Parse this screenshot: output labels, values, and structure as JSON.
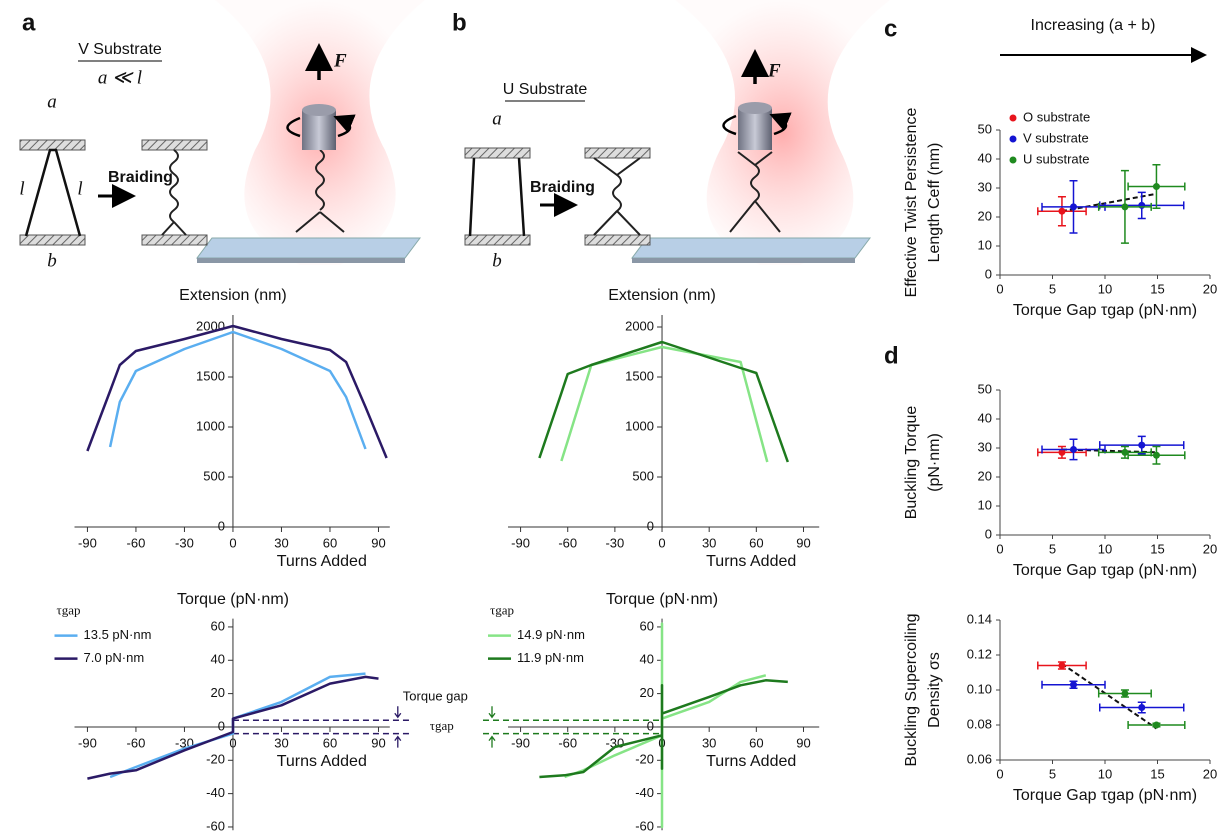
{
  "panel_labels": [
    "a",
    "b",
    "c",
    "d"
  ],
  "diagrams": {
    "a": {
      "title": "V Substrate",
      "condition": "a ≪ l",
      "a": "a",
      "l": "l",
      "b": "b",
      "action": "Braiding",
      "force": "F"
    },
    "b": {
      "title": "U Substrate",
      "a": "a",
      "b": "b",
      "action": "Braiding",
      "force": "F"
    },
    "c_header": "Increasing (a + b)"
  },
  "chart_data": [
    {
      "type": "line",
      "title": "Extension (nm)",
      "x_label": "Turns Added",
      "x": [
        -90,
        -76,
        -70,
        -60,
        -30,
        0,
        30,
        60,
        70,
        82,
        95
      ],
      "series": [
        {
          "color": "#5aaef0",
          "values": [
            null,
            800,
            1250,
            1560,
            1780,
            1950,
            1780,
            1560,
            1300,
            780,
            null
          ]
        },
        {
          "color": "#2b1a66",
          "values": [
            760,
            1360,
            1620,
            1760,
            1880,
            2010,
            1880,
            1770,
            1650,
            1200,
            690
          ]
        }
      ],
      "xlim": [
        -98,
        97
      ],
      "ylim": [
        0,
        2120
      ],
      "xticks": [
        -90,
        -60,
        -30,
        0,
        30,
        60,
        90
      ],
      "yticks": [
        0,
        500,
        1000,
        1500,
        2000
      ]
    },
    {
      "type": "line",
      "title": "Extension (nm)",
      "x_label": "Turns Added",
      "x": [
        -78,
        -64,
        -60,
        -45,
        0,
        50,
        60,
        67,
        80
      ],
      "series": [
        {
          "color": "#86e486",
          "values": [
            null,
            660,
            860,
            1620,
            1800,
            1650,
            1060,
            650,
            null
          ]
        },
        {
          "color": "#1e7a1e",
          "values": [
            690,
            1340,
            1530,
            1620,
            1850,
            1590,
            1540,
            1230,
            650
          ]
        }
      ],
      "xlim": [
        -98,
        100
      ],
      "ylim": [
        0,
        2120
      ],
      "xticks": [
        -90,
        -60,
        -30,
        0,
        30,
        60,
        90
      ],
      "yticks": [
        0,
        500,
        1000,
        1500,
        2000
      ]
    },
    {
      "type": "line",
      "title": "Torque (pN·nm)",
      "x_label": "Turns Added",
      "legend_title": "τgap",
      "x": [
        -90,
        -76,
        -60,
        -30,
        0,
        0,
        30,
        60,
        82,
        90
      ],
      "series": [
        {
          "name": "13.5 pN·nm",
          "color": "#5aaef0",
          "values": [
            null,
            -30,
            -24,
            -13,
            -4,
            5,
            15,
            30,
            32,
            null
          ]
        },
        {
          "name": "7.0 pN·nm",
          "color": "#2b1a66",
          "values": [
            -31,
            -28,
            -26,
            -14,
            -3,
            5,
            13,
            26,
            30,
            29
          ]
        }
      ],
      "gap_lines": [
        4,
        -4
      ],
      "gap_color": "#2b1a66",
      "annotation": "Torque gap",
      "annotation_symbol": "τgap",
      "xlim": [
        -98,
        97
      ],
      "ylim": [
        -62,
        65
      ],
      "xticks": [
        -90,
        -60,
        -30,
        0,
        30,
        60,
        90
      ],
      "yticks": [
        -60,
        -40,
        -20,
        0,
        20,
        40,
        60
      ]
    },
    {
      "type": "line",
      "title": "Torque (pN·nm)",
      "x_label": "Turns Added",
      "legend_title": "τgap",
      "x": [
        -78,
        -62,
        -50,
        -30,
        0,
        0,
        0,
        0,
        30,
        50,
        66,
        80
      ],
      "series": [
        {
          "name": "14.9 pN·nm",
          "color": "#86e486",
          "values": [
            null,
            -30,
            -26,
            -17,
            -5,
            -60,
            62,
            5,
            15,
            27,
            31,
            null
          ]
        },
        {
          "name": "11.9 pN·nm",
          "color": "#1e7a1e",
          "values": [
            -30,
            -29,
            -27,
            -12,
            -5,
            -25,
            25,
            8,
            18,
            25,
            28,
            27
          ]
        }
      ],
      "gap_lines": [
        4,
        -4
      ],
      "gap_color": "#1e7a1e",
      "xlim": [
        -98,
        100
      ],
      "ylim": [
        -62,
        65
      ],
      "xticks": [
        -90,
        -60,
        -30,
        0,
        30,
        60,
        90
      ],
      "yticks": [
        -60,
        -40,
        -20,
        0,
        20,
        40,
        60
      ]
    },
    {
      "type": "scatter",
      "x_label": "Torque Gap τgap (pN·nm)",
      "y_label": [
        "Effective Twist Persistence",
        "Length Ceff (nm)"
      ],
      "series": [
        {
          "name": "O substrate",
          "color": "#e8141c",
          "x": [
            5.9
          ],
          "values": [
            22
          ],
          "x_err": [
            2.3
          ],
          "y_err": [
            5
          ]
        },
        {
          "name": "V substrate",
          "color": "#1414d2",
          "x": [
            7.0,
            13.5
          ],
          "values": [
            23.5,
            24
          ],
          "x_err": [
            3,
            4
          ],
          "y_err": [
            9,
            4.5
          ]
        },
        {
          "name": "U substrate",
          "color": "#1f8a1f",
          "x": [
            11.9,
            14.9
          ],
          "values": [
            23.5,
            30.5
          ],
          "x_err": [
            2.5,
            2.7
          ],
          "y_err": [
            12.5,
            7.5
          ]
        }
      ],
      "trend": {
        "x": [
          5.9,
          14.9
        ],
        "values": [
          22,
          28
        ]
      },
      "xlim": [
        0,
        20
      ],
      "ylim": [
        0,
        50
      ],
      "xticks": [
        0,
        5,
        10,
        15,
        20
      ],
      "yticks": [
        0,
        10,
        20,
        30,
        40,
        50
      ]
    },
    {
      "type": "scatter",
      "x_label": "Torque Gap τgap (pN·nm)",
      "y_label": [
        "Buckling Torque",
        "(pN·nm)"
      ],
      "series": [
        {
          "color": "#e8141c",
          "x": [
            5.9
          ],
          "values": [
            28.5
          ],
          "x_err": [
            2.3
          ],
          "y_err": [
            2
          ]
        },
        {
          "color": "#1414d2",
          "x": [
            7.0,
            13.5
          ],
          "values": [
            29.5,
            31
          ],
          "x_err": [
            3,
            4
          ],
          "y_err": [
            3.5,
            3
          ]
        },
        {
          "color": "#1f8a1f",
          "x": [
            11.9,
            14.9
          ],
          "values": [
            28.5,
            27.5
          ],
          "x_err": [
            2.5,
            2.7
          ],
          "y_err": [
            2,
            3
          ]
        }
      ],
      "trend": {
        "x": [
          5.9,
          14.9
        ],
        "values": [
          29.5,
          28.5
        ]
      },
      "xlim": [
        0,
        20
      ],
      "ylim": [
        0,
        50
      ],
      "xticks": [
        0,
        5,
        10,
        15,
        20
      ],
      "yticks": [
        0,
        10,
        20,
        30,
        40,
        50
      ]
    },
    {
      "type": "scatter",
      "x_label": "Torque Gap τgap (pN·nm)",
      "y_label": [
        "Buckling Supercoiling",
        "Density σs"
      ],
      "series": [
        {
          "color": "#e8141c",
          "x": [
            5.9
          ],
          "values": [
            0.114
          ],
          "x_err": [
            2.3
          ],
          "y_err": [
            0.002
          ]
        },
        {
          "color": "#1414d2",
          "x": [
            7.0,
            13.5
          ],
          "values": [
            0.103,
            0.09
          ],
          "x_err": [
            3,
            4
          ],
          "y_err": [
            0.002,
            0.003
          ]
        },
        {
          "color": "#1f8a1f",
          "x": [
            11.9,
            14.9
          ],
          "values": [
            0.098,
            0.08
          ],
          "x_err": [
            2.5,
            2.7
          ],
          "y_err": [
            0.002,
            0.001
          ]
        }
      ],
      "trend": {
        "x": [
          5.9,
          14.9
        ],
        "values": [
          0.115,
          0.078
        ]
      },
      "xlim": [
        0,
        20
      ],
      "ylim": [
        0.06,
        0.14
      ],
      "xticks": [
        0,
        5,
        10,
        15,
        20
      ],
      "yticks": [
        0.06,
        0.08,
        {
          "value": 0.1,
          "label": "0.10"
        },
        0.12,
        0.14
      ]
    }
  ]
}
